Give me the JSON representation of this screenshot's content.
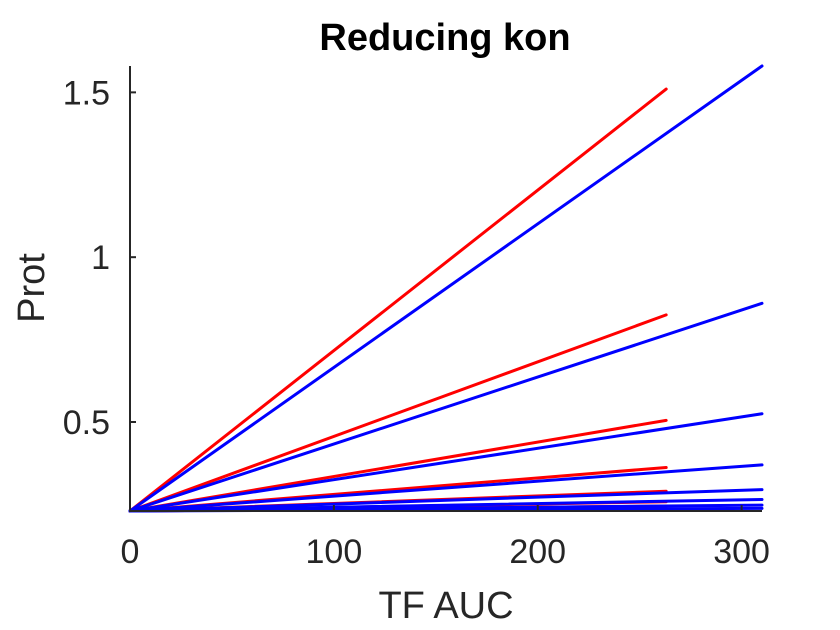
{
  "chart_data": {
    "type": "line",
    "title": "Reducing kon",
    "xlabel": "TF AUC",
    "ylabel": "Prot",
    "xlim": [
      0,
      310
    ],
    "ylim": [
      0.23,
      1.58
    ],
    "xticks": [
      0,
      100,
      200,
      300
    ],
    "yticks": [
      0.5,
      1,
      1.5
    ],
    "xtick_labels": [
      "0",
      "100",
      "200",
      "300"
    ],
    "ytick_labels": [
      "0.5",
      "1",
      "1.5"
    ],
    "grid": false,
    "colors": {
      "red": "#ff0000",
      "blue": "#0000ff"
    },
    "series": [
      {
        "color": "#ff0000",
        "x": [
          0,
          263
        ],
        "y": [
          0.23,
          1.51
        ]
      },
      {
        "color": "#ff0000",
        "x": [
          0,
          263
        ],
        "y": [
          0.23,
          0.825
        ]
      },
      {
        "color": "#ff0000",
        "x": [
          0,
          263
        ],
        "y": [
          0.23,
          0.505
        ]
      },
      {
        "color": "#ff0000",
        "x": [
          0,
          263
        ],
        "y": [
          0.23,
          0.362
        ]
      },
      {
        "color": "#ff0000",
        "x": [
          0,
          263
        ],
        "y": [
          0.23,
          0.29
        ]
      },
      {
        "color": "#ff0000",
        "x": [
          0,
          263
        ],
        "y": [
          0.23,
          0.258
        ]
      },
      {
        "color": "#ff0000",
        "x": [
          0,
          263
        ],
        "y": [
          0.23,
          0.245
        ]
      },
      {
        "color": "#0000ff",
        "x": [
          0,
          310
        ],
        "y": [
          0.23,
          1.58
        ]
      },
      {
        "color": "#0000ff",
        "x": [
          0,
          310
        ],
        "y": [
          0.23,
          0.86
        ]
      },
      {
        "color": "#0000ff",
        "x": [
          0,
          310
        ],
        "y": [
          0.23,
          0.525
        ]
      },
      {
        "color": "#0000ff",
        "x": [
          0,
          310
        ],
        "y": [
          0.23,
          0.37
        ]
      },
      {
        "color": "#0000ff",
        "x": [
          0,
          310
        ],
        "y": [
          0.23,
          0.295
        ]
      },
      {
        "color": "#0000ff",
        "x": [
          0,
          310
        ],
        "y": [
          0.23,
          0.265
        ]
      },
      {
        "color": "#0000ff",
        "x": [
          0,
          310
        ],
        "y": [
          0.23,
          0.248
        ]
      },
      {
        "color": "#0000ff",
        "x": [
          0,
          310
        ],
        "y": [
          0.23,
          0.238
        ]
      }
    ]
  }
}
